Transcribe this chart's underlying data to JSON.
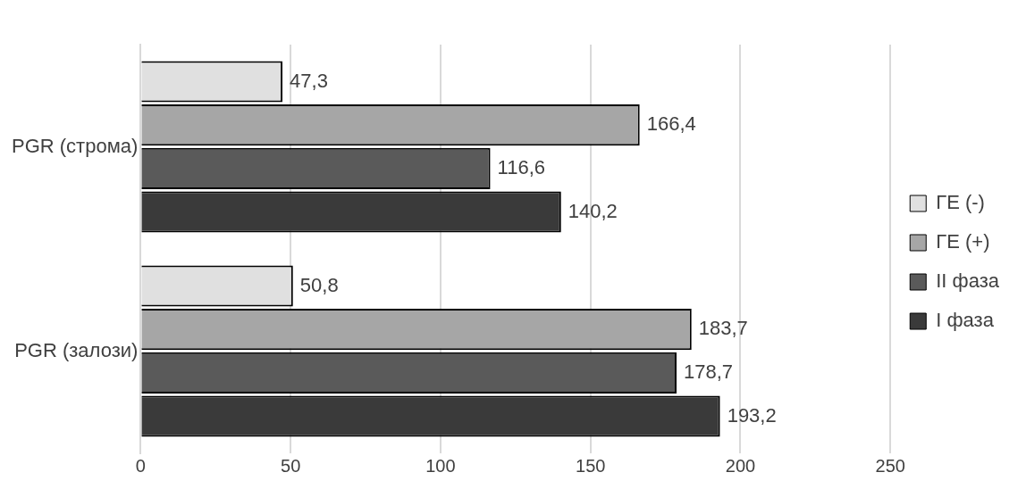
{
  "chart_data": {
    "type": "bar",
    "orientation": "horizontal",
    "categories": [
      "PGR (строма)",
      "PGR (залози)"
    ],
    "series": [
      {
        "name": "ГЕ (-)",
        "color": "#e0e0e0",
        "values": [
          47.3,
          50.8
        ],
        "value_labels": [
          "47,3",
          "50,8"
        ]
      },
      {
        "name": "ГЕ (+)",
        "color": "#a6a6a6",
        "values": [
          166.4,
          183.7
        ],
        "value_labels": [
          "166,4",
          "183,7"
        ]
      },
      {
        "name": "II фаза",
        "color": "#5a5a5a",
        "values": [
          116.6,
          178.7
        ],
        "value_labels": [
          "116,6",
          "178,7"
        ]
      },
      {
        "name": "I фаза",
        "color": "#3a3a3a",
        "values": [
          140.2,
          193.2
        ],
        "value_labels": [
          "140,2",
          "193,2"
        ]
      }
    ],
    "xlim": [
      0,
      250
    ],
    "xticks": [
      0,
      50,
      100,
      150,
      200,
      250
    ],
    "grid": "x",
    "legend": "right"
  }
}
